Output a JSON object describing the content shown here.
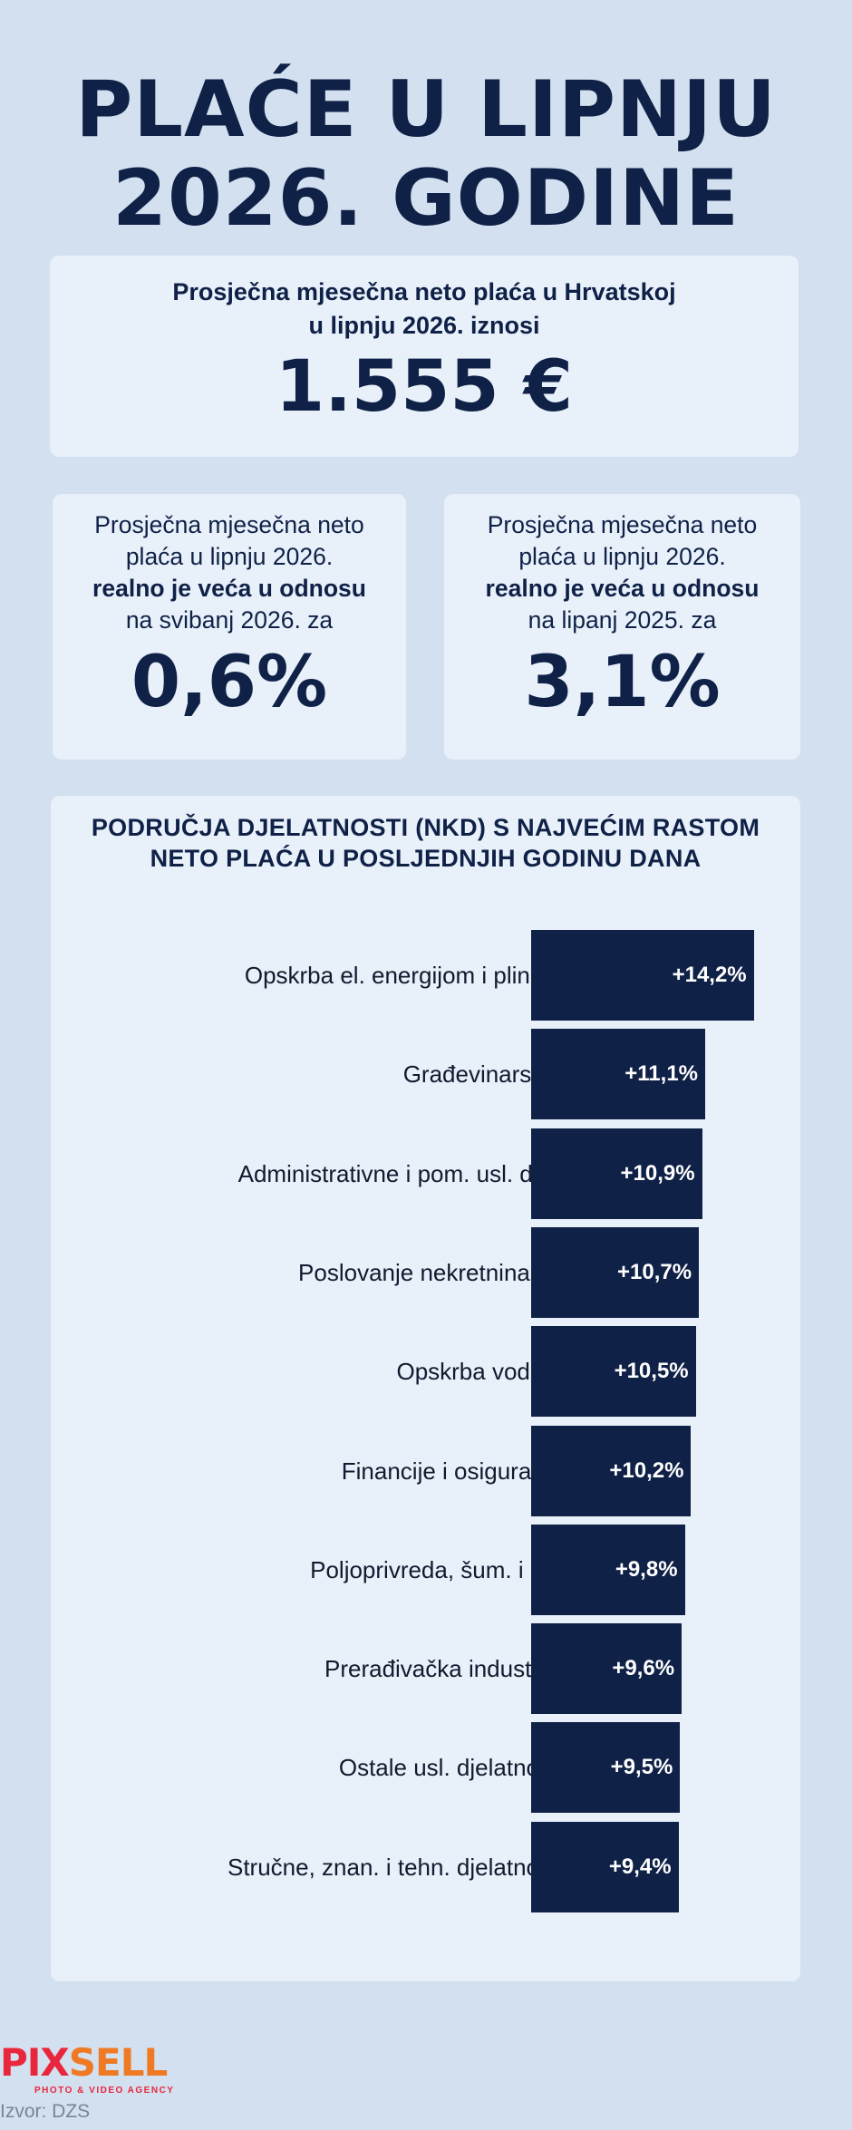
{
  "title": {
    "line1": "PLAĆE U LIPNJU",
    "line2": "2026. GODINE"
  },
  "main_card": {
    "label_line1": "Prosječna mjesečna neto plaća u Hrvatskoj",
    "label_line2": "u lipnju 2026. iznosi",
    "value": "1.555 €"
  },
  "card_month": {
    "line1": "Prosječna mjesečna neto",
    "line2": "plaća u lipnju 2026.",
    "line3": "realno je veća u odnosu",
    "line4": "na svibanj 2026. za",
    "value": "0,6%"
  },
  "card_year": {
    "line1": "Prosječna mjesečna neto",
    "line2": "plaća u lipnju 2026.",
    "line3": "realno je veća u odnosu",
    "line4": "na lipanj 2025. za",
    "value": "3,1%"
  },
  "chart_data": {
    "type": "bar",
    "orientation": "horizontal",
    "title_line1": "PODRUČJA DJELATNOSTI (NKD) S NAJVEĆIM RASTOM",
    "title_line2": "NETO PLAĆA U POSLJEDNJIH GODINU DANA",
    "categories": [
      "Opskrba el. energijom i plinom",
      "Građevinarstvo",
      "Administrativne i pom. usl. djel.",
      "Poslovanje nekretninama",
      "Opskrba vodom",
      "Financije i osiguranje",
      "Poljoprivreda, šum. i rib.",
      "Prerađivačka industrija",
      "Ostale usl. djelatnosti",
      "Stručne, znan. i tehn. djelatnosti"
    ],
    "values": [
      14.2,
      11.1,
      10.9,
      10.7,
      10.5,
      10.2,
      9.8,
      9.6,
      9.5,
      9.4
    ],
    "value_labels": [
      "+14,2%",
      "+11,1%",
      "+10,9%",
      "+10,7%",
      "+10,5%",
      "+10,2%",
      "+9,8%",
      "+9,6%",
      "+9,5%",
      "+9,4%"
    ],
    "unit": "%",
    "bar_color": "#0f2147",
    "label_color": "#ffffff",
    "grid": false,
    "legend": "none"
  },
  "footer": {
    "logo_part1": "PIX",
    "logo_part2": "SELL",
    "logo_tagline": "PHOTO & VIDEO AGENCY",
    "source": "Izvor: DZS"
  },
  "colors": {
    "background": "#d3e0ef",
    "card": "#e8f0fa",
    "navy": "#0f2147",
    "logo_red": "#e8273d",
    "logo_orange": "#f07a23"
  }
}
